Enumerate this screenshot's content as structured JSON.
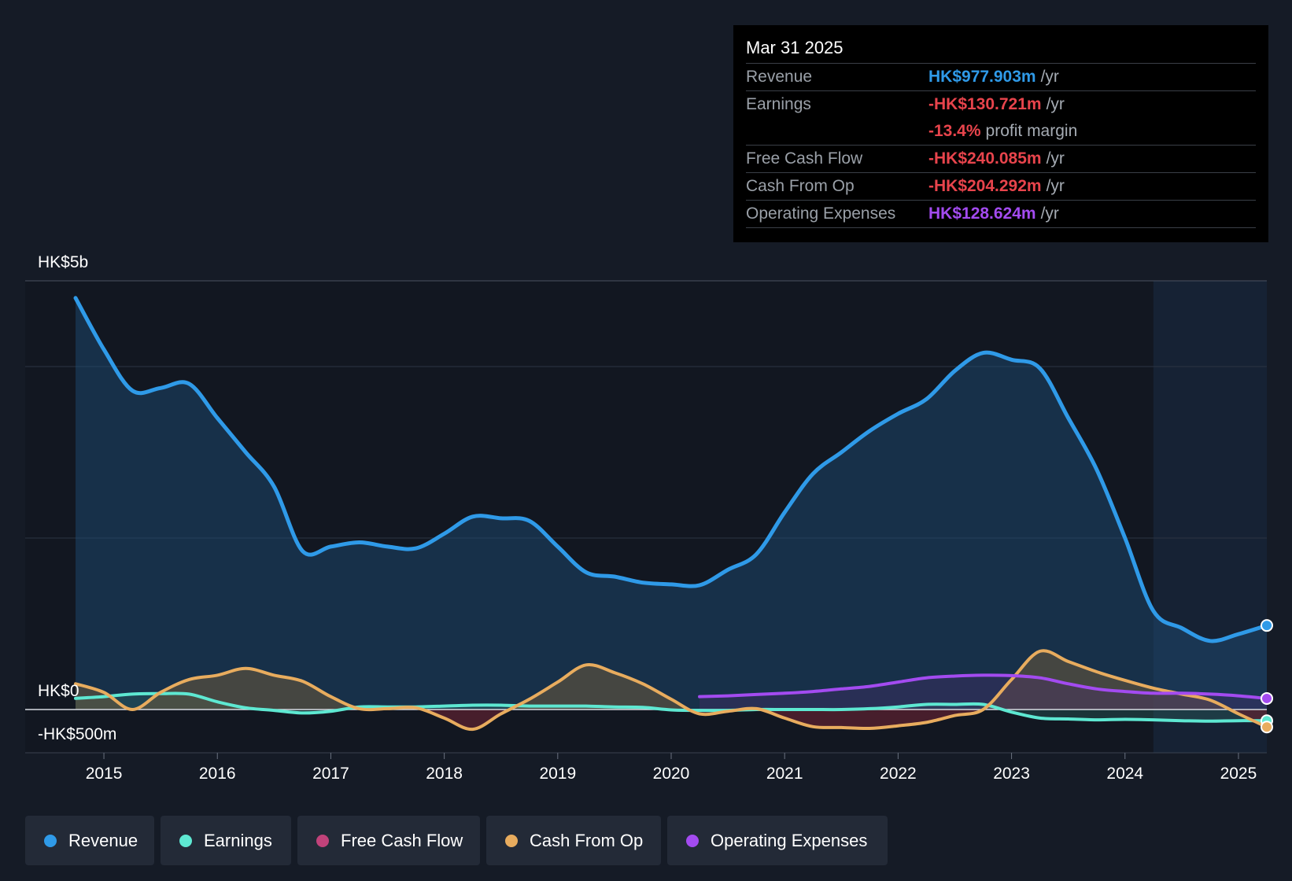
{
  "tooltip": {
    "date": "Mar 31 2025",
    "rows": [
      {
        "label": "Revenue",
        "value": "HK$977.903m",
        "unit": "/yr",
        "color": "#2f9ae8"
      },
      {
        "label": "Earnings",
        "value": "-HK$130.721m",
        "unit": "/yr",
        "color": "#e8444c"
      },
      {
        "label": "",
        "value": "-13.4%",
        "unit": "profit margin",
        "color": "#e8444c"
      },
      {
        "label": "Free Cash Flow",
        "value": "-HK$240.085m",
        "unit": "/yr",
        "color": "#e8444c"
      },
      {
        "label": "Cash From Op",
        "value": "-HK$204.292m",
        "unit": "/yr",
        "color": "#e8444c"
      },
      {
        "label": "Operating Expenses",
        "value": "HK$128.624m",
        "unit": "/yr",
        "color": "#a34bf0"
      }
    ]
  },
  "legend": [
    {
      "label": "Revenue",
      "color": "#2f9ae8"
    },
    {
      "label": "Earnings",
      "color": "#5ee8d2"
    },
    {
      "label": "Free Cash Flow",
      "color": "#c1427a"
    },
    {
      "label": "Cash From Op",
      "color": "#e8ac5e"
    },
    {
      "label": "Operating Expenses",
      "color": "#a34bf0"
    }
  ],
  "chart_data": {
    "type": "line",
    "y_labels": {
      "top": "HK$5b",
      "zero": "HK$0",
      "bottom": "-HK$500m"
    },
    "ylim": [
      -500,
      5000
    ],
    "xlim": [
      2014.75,
      2025.25
    ],
    "x_ticks": [
      "2015",
      "2016",
      "2017",
      "2018",
      "2019",
      "2020",
      "2021",
      "2022",
      "2023",
      "2024",
      "2025"
    ],
    "forecast_start": 2024.25,
    "series": [
      {
        "name": "Revenue",
        "color": "#2f9ae8",
        "points": [
          [
            2014.75,
            4800
          ],
          [
            2015.0,
            4200
          ],
          [
            2015.25,
            3720
          ],
          [
            2015.5,
            3750
          ],
          [
            2015.75,
            3800
          ],
          [
            2016.0,
            3400
          ],
          [
            2016.25,
            3000
          ],
          [
            2016.5,
            2600
          ],
          [
            2016.75,
            1850
          ],
          [
            2017.0,
            1900
          ],
          [
            2017.25,
            1950
          ],
          [
            2017.5,
            1900
          ],
          [
            2017.75,
            1880
          ],
          [
            2018.0,
            2050
          ],
          [
            2018.25,
            2250
          ],
          [
            2018.5,
            2230
          ],
          [
            2018.75,
            2200
          ],
          [
            2019.0,
            1900
          ],
          [
            2019.25,
            1600
          ],
          [
            2019.5,
            1550
          ],
          [
            2019.75,
            1480
          ],
          [
            2020.0,
            1460
          ],
          [
            2020.25,
            1450
          ],
          [
            2020.5,
            1630
          ],
          [
            2020.75,
            1810
          ],
          [
            2021.0,
            2300
          ],
          [
            2021.25,
            2750
          ],
          [
            2021.5,
            3000
          ],
          [
            2021.75,
            3250
          ],
          [
            2022.0,
            3450
          ],
          [
            2022.25,
            3620
          ],
          [
            2022.5,
            3950
          ],
          [
            2022.75,
            4160
          ],
          [
            2023.0,
            4080
          ],
          [
            2023.25,
            3980
          ],
          [
            2023.5,
            3400
          ],
          [
            2023.75,
            2800
          ],
          [
            2024.0,
            2000
          ],
          [
            2024.25,
            1150
          ],
          [
            2024.5,
            950
          ],
          [
            2024.75,
            800
          ],
          [
            2025.0,
            880
          ],
          [
            2025.25,
            980
          ]
        ]
      },
      {
        "name": "Earnings",
        "color": "#5ee8d2",
        "points": [
          [
            2014.75,
            130
          ],
          [
            2015.0,
            150
          ],
          [
            2015.25,
            180
          ],
          [
            2015.5,
            185
          ],
          [
            2015.75,
            180
          ],
          [
            2016.0,
            90
          ],
          [
            2016.25,
            20
          ],
          [
            2016.5,
            -10
          ],
          [
            2016.75,
            -40
          ],
          [
            2017.0,
            -20
          ],
          [
            2017.25,
            30
          ],
          [
            2017.5,
            30
          ],
          [
            2017.75,
            30
          ],
          [
            2018.0,
            40
          ],
          [
            2018.25,
            50
          ],
          [
            2018.5,
            50
          ],
          [
            2018.75,
            40
          ],
          [
            2019.0,
            40
          ],
          [
            2019.25,
            40
          ],
          [
            2019.5,
            30
          ],
          [
            2019.75,
            25
          ],
          [
            2020.0,
            -5
          ],
          [
            2020.25,
            -10
          ],
          [
            2020.5,
            -10
          ],
          [
            2020.75,
            0
          ],
          [
            2021.0,
            0
          ],
          [
            2021.25,
            0
          ],
          [
            2021.5,
            0
          ],
          [
            2021.75,
            10
          ],
          [
            2022.0,
            30
          ],
          [
            2022.25,
            60
          ],
          [
            2022.5,
            60
          ],
          [
            2022.75,
            60
          ],
          [
            2023.0,
            -30
          ],
          [
            2023.25,
            -100
          ],
          [
            2023.5,
            -110
          ],
          [
            2023.75,
            -120
          ],
          [
            2024.0,
            -115
          ],
          [
            2024.25,
            -120
          ],
          [
            2024.5,
            -130
          ],
          [
            2024.75,
            -135
          ],
          [
            2025.0,
            -130
          ],
          [
            2025.25,
            -131
          ]
        ]
      },
      {
        "name": "Cash From Op",
        "color": "#e8ac5e",
        "points": [
          [
            2014.75,
            300
          ],
          [
            2015.0,
            200
          ],
          [
            2015.25,
            0
          ],
          [
            2015.5,
            200
          ],
          [
            2015.75,
            350
          ],
          [
            2016.0,
            400
          ],
          [
            2016.25,
            480
          ],
          [
            2016.5,
            400
          ],
          [
            2016.75,
            330
          ],
          [
            2017.0,
            150
          ],
          [
            2017.25,
            10
          ],
          [
            2017.5,
            10
          ],
          [
            2017.75,
            20
          ],
          [
            2018.0,
            -100
          ],
          [
            2018.25,
            -230
          ],
          [
            2018.5,
            -50
          ],
          [
            2018.75,
            120
          ],
          [
            2019.0,
            320
          ],
          [
            2019.25,
            520
          ],
          [
            2019.5,
            430
          ],
          [
            2019.75,
            300
          ],
          [
            2020.0,
            120
          ],
          [
            2020.25,
            -50
          ],
          [
            2020.5,
            -20
          ],
          [
            2020.75,
            10
          ],
          [
            2021.0,
            -100
          ],
          [
            2021.25,
            -200
          ],
          [
            2021.5,
            -210
          ],
          [
            2021.75,
            -220
          ],
          [
            2022.0,
            -190
          ],
          [
            2022.25,
            -150
          ],
          [
            2022.5,
            -70
          ],
          [
            2022.75,
            0
          ],
          [
            2023.0,
            350
          ],
          [
            2023.25,
            680
          ],
          [
            2023.5,
            560
          ],
          [
            2023.75,
            440
          ],
          [
            2024.0,
            340
          ],
          [
            2024.25,
            250
          ],
          [
            2024.5,
            180
          ],
          [
            2024.75,
            110
          ],
          [
            2025.0,
            -50
          ],
          [
            2025.25,
            -204
          ]
        ]
      },
      {
        "name": "Operating Expenses",
        "color": "#a34bf0",
        "points": [
          [
            2020.25,
            150
          ],
          [
            2020.5,
            160
          ],
          [
            2020.75,
            175
          ],
          [
            2021.0,
            190
          ],
          [
            2021.25,
            210
          ],
          [
            2021.5,
            240
          ],
          [
            2021.75,
            270
          ],
          [
            2022.0,
            320
          ],
          [
            2022.25,
            370
          ],
          [
            2022.5,
            390
          ],
          [
            2022.75,
            400
          ],
          [
            2023.0,
            395
          ],
          [
            2023.25,
            370
          ],
          [
            2023.5,
            300
          ],
          [
            2023.75,
            240
          ],
          [
            2024.0,
            210
          ],
          [
            2024.25,
            190
          ],
          [
            2024.5,
            190
          ],
          [
            2024.75,
            180
          ],
          [
            2025.0,
            160
          ],
          [
            2025.25,
            129
          ]
        ]
      }
    ]
  }
}
